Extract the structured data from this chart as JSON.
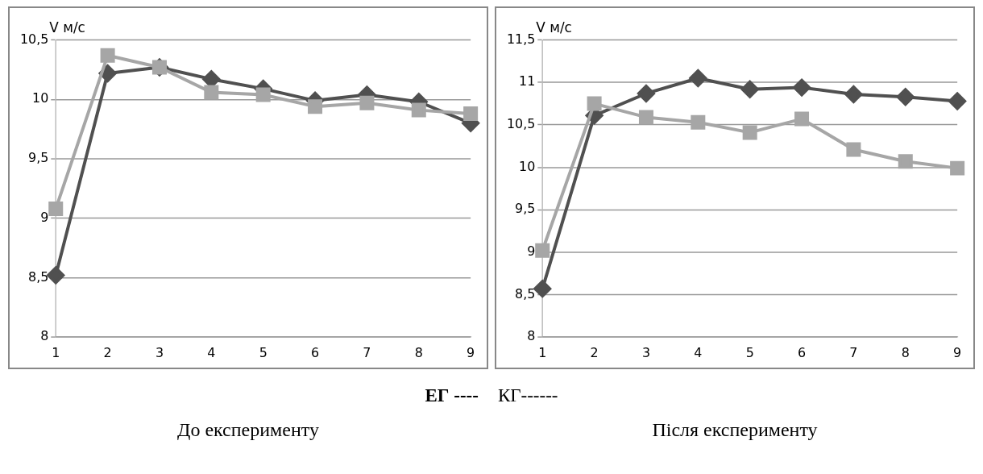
{
  "chart_data": [
    {
      "type": "line",
      "title": "До експерименту",
      "ylabel": "V м/с",
      "categories": [
        "1",
        "2",
        "3",
        "4",
        "5",
        "6",
        "7",
        "8",
        "9"
      ],
      "ylim": [
        8,
        10.5
      ],
      "yticks": [
        8,
        {
          "value": 8.5,
          "label": "8,5"
        },
        9,
        {
          "value": 9.5,
          "label": "9,5"
        },
        10,
        {
          "value": 10.5,
          "label": "10,5"
        }
      ],
      "grid": "y",
      "legend": false,
      "series": [
        {
          "color": "#505050",
          "marker": "diamond",
          "values": [
            8.52,
            10.22,
            10.27,
            10.17,
            10.09,
            9.99,
            10.04,
            9.98,
            9.8
          ]
        },
        {
          "color": "#a6a6a6",
          "marker": "square",
          "values": [
            9.08,
            10.37,
            10.27,
            10.06,
            10.04,
            9.94,
            9.97,
            9.91,
            9.88
          ]
        }
      ],
      "annotations": [
        "ЕГ ----",
        "КГ------"
      ]
    },
    {
      "type": "line",
      "title": "Після експерименту",
      "ylabel": "V м/с",
      "categories": [
        "1",
        "2",
        "3",
        "4",
        "5",
        "6",
        "7",
        "8",
        "9"
      ],
      "ylim": [
        8,
        11.5
      ],
      "yticks": [
        8,
        {
          "value": 8.5,
          "label": "8,5"
        },
        9,
        {
          "value": 9.5,
          "label": "9,5"
        },
        10,
        {
          "value": 10.5,
          "label": "10,5"
        },
        11,
        {
          "value": 11.5,
          "label": "11,5"
        }
      ],
      "grid": "y",
      "legend": false,
      "series": [
        {
          "color": "#505050",
          "marker": "diamond",
          "values": [
            8.57,
            10.61,
            10.87,
            11.05,
            10.92,
            10.94,
            10.86,
            10.83,
            10.78
          ]
        },
        {
          "color": "#a6a6a6",
          "marker": "square",
          "values": [
            9.02,
            10.75,
            10.59,
            10.53,
            10.41,
            10.57,
            10.21,
            10.07,
            9.99
          ]
        }
      ]
    }
  ]
}
